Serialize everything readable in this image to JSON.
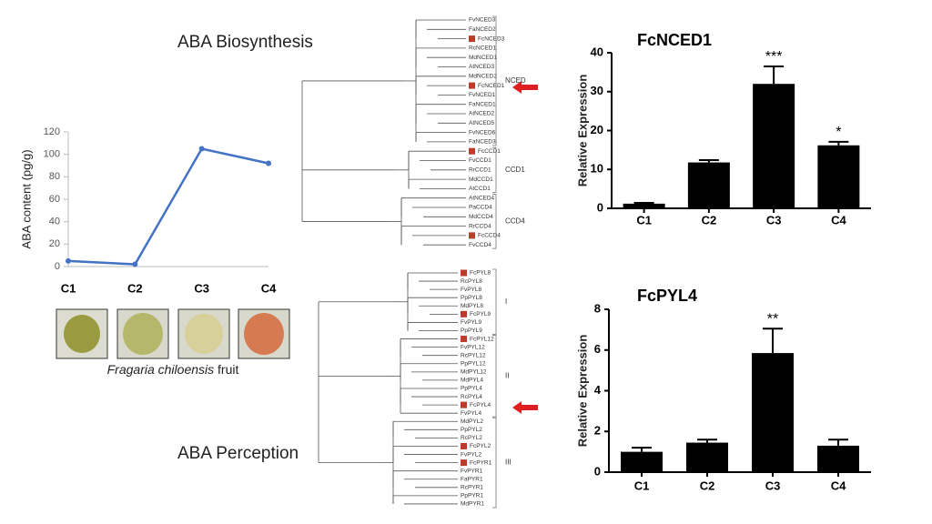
{
  "slide": {
    "biosynthesis": "ABA Biosynthesis",
    "perception": "ABA Perception",
    "caption_species": "Fragaria chiloensis",
    "caption_rest": "fruit"
  },
  "chart_data": [
    {
      "type": "line",
      "y_label": "ABA content (pg/g)",
      "categories": [
        "C1",
        "C2",
        "C3",
        "C4"
      ],
      "values": [
        5,
        2,
        105,
        92
      ],
      "color": "#4472c4",
      "ylim": [
        0,
        120
      ],
      "yticks": [
        0,
        20,
        40,
        60,
        80,
        100,
        120
      ],
      "grid": false
    },
    {
      "type": "bar",
      "title": "FcNCED1",
      "y_label": "Relative Expression",
      "categories": [
        "C1",
        "C2",
        "C3",
        "C4"
      ],
      "values": [
        1.2,
        11.8,
        32,
        16.2
      ],
      "errors": [
        0.2,
        0.6,
        4.5,
        0.9
      ],
      "significance": [
        null,
        null,
        "***",
        "*"
      ],
      "color": "#000000",
      "ylim": [
        0,
        40
      ],
      "yticks": [
        0,
        10,
        20,
        30,
        40
      ],
      "grid": false
    },
    {
      "type": "bar",
      "title": "FcPYL4",
      "y_label": "Relative Expression",
      "categories": [
        "C1",
        "C2",
        "C3",
        "C4"
      ],
      "values": [
        1.0,
        1.45,
        5.85,
        1.3
      ],
      "errors": [
        0.2,
        0.15,
        1.2,
        0.3
      ],
      "significance": [
        null,
        null,
        "**",
        null
      ],
      "color": "#000000",
      "ylim": [
        0,
        8
      ],
      "yticks": [
        0,
        2,
        4,
        6,
        8
      ],
      "grid": false
    }
  ],
  "trees": [
    {
      "leaves": [
        {
          "label": "FvNCED3"
        },
        {
          "label": "FaNCED2"
        },
        {
          "label": "FcNCED3",
          "marked": true
        },
        {
          "label": "RcNCED1"
        },
        {
          "label": "MdNCED1"
        },
        {
          "label": "AtNCED3"
        },
        {
          "label": "MdNCED2"
        },
        {
          "label": "FcNCED1",
          "marked": true
        },
        {
          "label": "FvNCED1"
        },
        {
          "label": "FaNCED1"
        },
        {
          "label": "AtNCED2"
        },
        {
          "label": "AtNCED5"
        },
        {
          "label": "FvNCED6"
        },
        {
          "label": "FaNCED3"
        },
        {
          "label": "FcCCD1",
          "marked": true
        },
        {
          "label": "FvCCD1"
        },
        {
          "label": "RrCCD1"
        },
        {
          "label": "MdCCD1"
        },
        {
          "label": "AtCCD1"
        },
        {
          "label": "AtNCED4"
        },
        {
          "label": "PaCCD4"
        },
        {
          "label": "MdCCD4"
        },
        {
          "label": "RrCCD4"
        },
        {
          "label": "FcCCD4",
          "marked": true
        },
        {
          "label": "FvCCD4"
        }
      ],
      "groups": [
        {
          "label": "NCED",
          "first": 0,
          "last": 13
        },
        {
          "label": "CCD1",
          "first": 14,
          "last": 18
        },
        {
          "label": "CCD4",
          "first": 19,
          "last": 24
        }
      ]
    },
    {
      "leaves": [
        {
          "label": "FcPYL8",
          "marked": true
        },
        {
          "label": "RcPYL8"
        },
        {
          "label": "FvPYL8"
        },
        {
          "label": "PpPYL8"
        },
        {
          "label": "MdPYL8"
        },
        {
          "label": "FcPYL9",
          "marked": true
        },
        {
          "label": "FvPYL9"
        },
        {
          "label": "PpPYL9"
        },
        {
          "label": "FcPYL12",
          "marked": true
        },
        {
          "label": "FvPYL12"
        },
        {
          "label": "RcPYL12"
        },
        {
          "label": "PpPYL12"
        },
        {
          "label": "MdPYL12"
        },
        {
          "label": "MdPYL4"
        },
        {
          "label": "PpPYL4"
        },
        {
          "label": "RcPYL4"
        },
        {
          "label": "FcPYL4",
          "marked": true
        },
        {
          "label": "FvPYL4"
        },
        {
          "label": "MdPYL2"
        },
        {
          "label": "PpPYL2"
        },
        {
          "label": "RcPYL2"
        },
        {
          "label": "FcPYL2",
          "marked": true
        },
        {
          "label": "FvPYL2"
        },
        {
          "label": "FcPYR1",
          "marked": true
        },
        {
          "label": "FvPYR1"
        },
        {
          "label": "FaPYR1"
        },
        {
          "label": "RcPYR1"
        },
        {
          "label": "PpPYR1"
        },
        {
          "label": "MdPYR1"
        }
      ],
      "groups": [
        {
          "label": "I",
          "first": 0,
          "last": 7
        },
        {
          "label": "II",
          "first": 8,
          "last": 17
        },
        {
          "label": "III",
          "first": 18,
          "last": 28
        }
      ]
    }
  ]
}
